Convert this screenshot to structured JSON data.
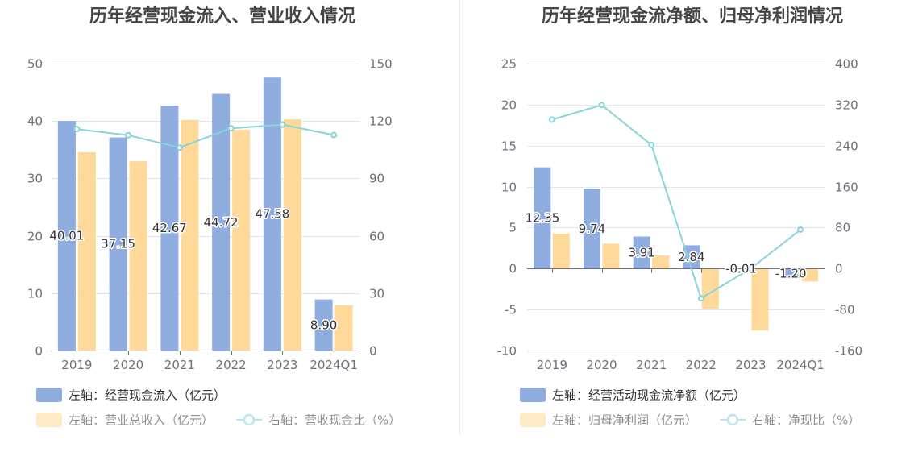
{
  "chart_data": [
    {
      "type": "bar",
      "title": "历年经营现金流入、营业收入情况",
      "categories": [
        "2019",
        "2020",
        "2021",
        "2022",
        "2023",
        "2024Q1"
      ],
      "left_axis": {
        "min": 0,
        "max": 50,
        "ticks": [
          0,
          10,
          20,
          30,
          40,
          50
        ]
      },
      "right_axis": {
        "min": 0,
        "max": 150,
        "ticks": [
          0,
          30,
          60,
          90,
          120,
          150
        ]
      },
      "series": [
        {
          "name": "左轴：经营现金流入（亿元）",
          "color": "#8fadde",
          "values": [
            40.01,
            37.15,
            42.67,
            44.72,
            47.58,
            8.9
          ],
          "labels": [
            "40.01",
            "37.15",
            "42.67",
            "44.72",
            "47.58",
            "8.90"
          ]
        },
        {
          "name": "左轴：营业总收入（亿元）",
          "color": "#ffd999",
          "values": [
            34.55,
            33.0,
            40.2,
            38.5,
            40.3,
            7.9
          ]
        }
      ],
      "line_series": {
        "name": "右轴：营收现金比（%）",
        "color": "#87d4d9",
        "values": [
          115.8,
          112.6,
          106.1,
          116.2,
          118.1,
          112.7
        ]
      }
    },
    {
      "type": "bar",
      "title": "历年经营现金流净额、归母净利润情况",
      "categories": [
        "2019",
        "2020",
        "2021",
        "2022",
        "2023",
        "2024Q1"
      ],
      "left_axis": {
        "min": -10,
        "max": 25,
        "ticks": [
          -10,
          -5,
          0,
          5,
          10,
          15,
          20,
          25
        ]
      },
      "right_axis": {
        "min": -160,
        "max": 400,
        "ticks": [
          -160,
          -80,
          0,
          80,
          160,
          240,
          320,
          400
        ]
      },
      "series": [
        {
          "name": "左轴：经营活动现金流净额（亿元）",
          "color": "#8fadde",
          "values": [
            12.35,
            9.74,
            3.91,
            2.84,
            -0.01,
            -1.2
          ],
          "labels": [
            "12.35",
            "9.74",
            "3.91",
            "2.84",
            "-0.01",
            "-1.20"
          ]
        },
        {
          "name": "左轴：归母净利润（亿元）",
          "color": "#ffd999",
          "values": [
            4.25,
            3.05,
            1.62,
            -4.9,
            -7.55,
            -1.58
          ]
        }
      ],
      "line_series": {
        "name": "右轴：净现比（%）",
        "color": "#87d4d9",
        "values": [
          290.6,
          319.3,
          241.4,
          -58.0,
          0.1,
          75.9
        ]
      }
    }
  ]
}
